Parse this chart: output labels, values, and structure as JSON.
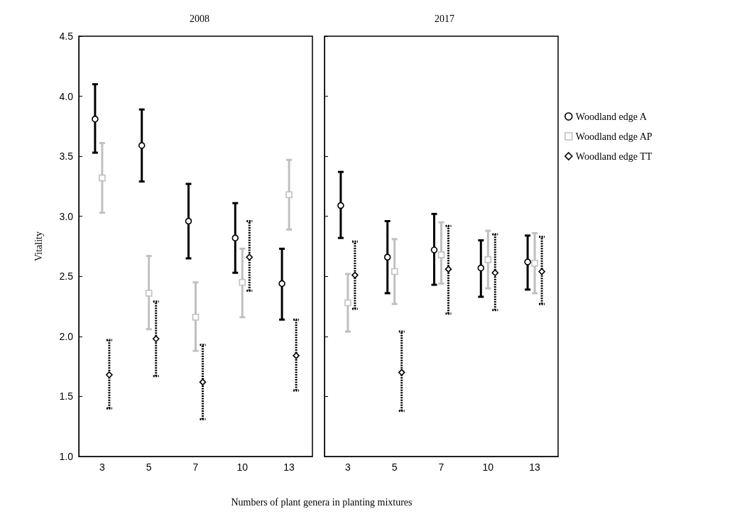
{
  "chart_data": [
    {
      "type": "scatter",
      "title": "2008",
      "xlabel": "Numbers of plant genera in planting mixtures",
      "ylabel": "Vitality",
      "categories": [
        "3",
        "5",
        "7",
        "10",
        "13"
      ],
      "ylim": [
        1.0,
        4.5
      ],
      "yticks": [
        {
          "value": 1,
          "label": "1.0"
        },
        {
          "value": 1.5,
          "label": "1.5"
        },
        {
          "value": 2,
          "label": "2.0"
        },
        {
          "value": 2.5,
          "label": "2.5"
        },
        {
          "value": 3,
          "label": "3.0"
        },
        {
          "value": 3.5,
          "label": "3.5"
        },
        {
          "value": 4,
          "label": "4.0"
        },
        {
          "value": 4.5,
          "label": "4.5"
        }
      ],
      "grid": false,
      "legend": false,
      "series": [
        {
          "color": "#000000",
          "marker": "circle",
          "line_style": "solid",
          "values": [
            3.81,
            3.59,
            2.96,
            2.82,
            2.44
          ],
          "errors": [
            [
              3.53,
              4.1
            ],
            [
              3.29,
              3.89
            ],
            [
              2.65,
              3.27
            ],
            [
              2.53,
              3.11
            ],
            [
              2.14,
              2.73
            ]
          ]
        },
        {
          "color": "#c0c0c0",
          "marker": "square",
          "line_style": "solid",
          "values": [
            3.32,
            2.36,
            2.16,
            2.45,
            3.18
          ],
          "errors": [
            [
              3.03,
              3.61
            ],
            [
              2.06,
              2.67
            ],
            [
              1.88,
              2.45
            ],
            [
              2.16,
              2.73
            ],
            [
              2.89,
              3.47
            ]
          ]
        },
        {
          "color": "#000000",
          "marker": "diamond",
          "line_style": "dotted",
          "values": [
            1.68,
            1.98,
            1.62,
            2.66,
            1.84
          ],
          "errors": [
            [
              1.4,
              1.97
            ],
            [
              1.67,
              2.29
            ],
            [
              1.31,
              1.93
            ],
            [
              2.38,
              2.96
            ],
            [
              1.55,
              2.14
            ]
          ]
        }
      ]
    },
    {
      "type": "scatter",
      "title": "2017",
      "categories": [
        "3",
        "5",
        "7",
        "10",
        "13"
      ],
      "ylim": [
        1.0,
        4.5
      ],
      "yticks": [
        {
          "value": 1,
          "label": null
        },
        {
          "value": 1.5,
          "label": null
        },
        {
          "value": 2,
          "label": null
        },
        {
          "value": 2.5,
          "label": null
        },
        {
          "value": 3,
          "label": null
        },
        {
          "value": 3.5,
          "label": null
        },
        {
          "value": 4,
          "label": null
        },
        {
          "value": 4.5,
          "label": null
        }
      ],
      "grid": false,
      "legend": "right",
      "tick_labels": "x",
      "series": [
        {
          "name": "Woodland edge A",
          "color": "#000000",
          "marker": "circle",
          "line_style": "solid",
          "values": [
            3.09,
            2.66,
            2.72,
            2.57,
            2.62
          ],
          "errors": [
            [
              2.82,
              3.37
            ],
            [
              2.36,
              2.96
            ],
            [
              2.43,
              3.02
            ],
            [
              2.33,
              2.8
            ],
            [
              2.39,
              2.84
            ]
          ]
        },
        {
          "name": "Woodland edge AP",
          "color": "#c0c0c0",
          "marker": "square",
          "line_style": "solid",
          "values": [
            2.28,
            2.54,
            2.68,
            2.64,
            2.61
          ],
          "errors": [
            [
              2.04,
              2.52
            ],
            [
              2.27,
              2.81
            ],
            [
              2.44,
              2.95
            ],
            [
              2.4,
              2.88
            ],
            [
              2.36,
              2.86
            ]
          ]
        },
        {
          "name": "Woodland edge TT",
          "color": "#000000",
          "marker": "diamond",
          "line_style": "dotted",
          "values": [
            2.51,
            1.7,
            2.56,
            2.53,
            2.54
          ],
          "errors": [
            [
              2.23,
              2.79
            ],
            [
              1.38,
              2.04
            ],
            [
              2.19,
              2.92
            ],
            [
              2.22,
              2.85
            ],
            [
              2.27,
              2.83
            ]
          ]
        }
      ]
    }
  ]
}
